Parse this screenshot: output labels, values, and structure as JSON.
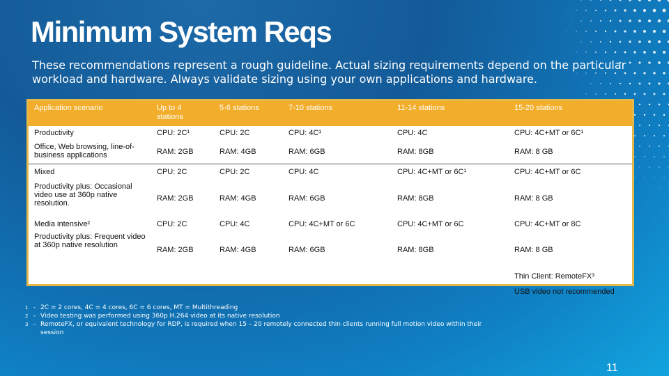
{
  "slide": {
    "title": "Minimum System Reqs",
    "subtitle": "These recommendations represent a rough guideline. Actual sizing requirements depend on the particular workload and hardware.  Always validate sizing using your own applications and hardware.",
    "page_number": "11"
  },
  "table": {
    "headers": [
      "Application scenario",
      "Up to 4 stations",
      "5-6 stations",
      "7-10 stations",
      "11-14 stations",
      "15-20 stations"
    ],
    "rows": [
      [
        "Productivity",
        "CPU: 2C¹",
        "CPU: 2C",
        "CPU: 4C¹",
        "CPU: 4C",
        "CPU: 4C+MT or 6C¹"
      ],
      [
        "Office, Web browsing, line-of-business applications",
        "RAM: 2GB",
        "RAM: 4GB",
        "RAM: 6GB",
        "RAM: 8GB",
        "RAM: 8 GB"
      ],
      [
        "Mixed",
        "CPU: 2C",
        "CPU: 2C",
        "CPU: 4C",
        "CPU: 4C+MT or 6C¹",
        "CPU: 4C+MT or 6C"
      ],
      [
        "Productivity plus: Occasional video use at 360p native resolution.",
        "RAM: 2GB",
        "RAM: 4GB",
        "RAM: 6GB",
        "RAM: 8GB",
        "RAM: 8 GB"
      ],
      [
        "Media intensive²",
        "CPU: 2C",
        "CPU: 4C",
        "CPU: 4C+MT or 6C",
        "CPU: 4C+MT or 6C",
        "CPU: 4C+MT or 8C"
      ],
      [
        "Productivity plus: Frequent video at 360p native resolution",
        "RAM: 2GB",
        "RAM: 4GB",
        "RAM: 6GB",
        "RAM: 8GB",
        "RAM: 8 GB"
      ]
    ],
    "notes": [
      "Thin Client: RemoteFX³",
      "USB video not recommended"
    ]
  },
  "footnotes": [
    {
      "mark": "1",
      "text": "2C = 2 cores, 4C = 4 cores, 6C = 6 cores, MT = Multithreading"
    },
    {
      "mark": "2",
      "text": "Video testing was performed using 360p H.264 video at its native resolution"
    },
    {
      "mark": "3",
      "text": "RemoteFX, or equivalent technology for RDP, is required when 15 – 20 remotely connected thin clients running full motion video within their session"
    }
  ],
  "colors": {
    "header_fill": "#f2ae2a",
    "border": "#e5b84a",
    "background": "#135a98"
  }
}
